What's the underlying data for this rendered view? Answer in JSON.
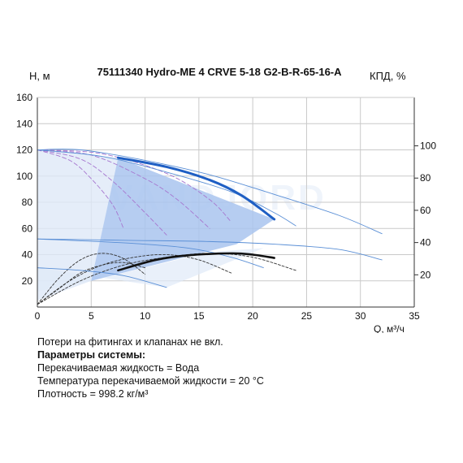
{
  "chart_data": {
    "type": "line",
    "title": "75111340 Hydro-ME 4 CRVE 5-18 G2-B-R-65-16-A",
    "ylabel": "H, м",
    "y2label": "КПД, %",
    "xlabel": "Q, м³/ч",
    "xlim": [
      0,
      35
    ],
    "ylim": [
      0,
      160
    ],
    "x_ticks": [
      "0",
      "5",
      "10",
      "15",
      "20",
      "25",
      "30",
      "35"
    ],
    "y_ticks": [
      "0",
      "20",
      "40",
      "60",
      "80",
      "100",
      "120",
      "140",
      "160"
    ],
    "y2lim": [
      0,
      130
    ],
    "y2_ticks": [
      "20",
      "40",
      "60",
      "80",
      "100"
    ],
    "grid": true,
    "watermark": "VANDJORD",
    "colors": {
      "duty_fill": "#a9c4ee",
      "light_fill": "#dfe9f8",
      "head_max": "#1f5fc4",
      "head_thin": "#5a8fd6",
      "power_curves": "#a676cf",
      "efficiency_curves": "#333333",
      "efficiency_main": "#111111",
      "grid": "#c9c9c9"
    },
    "duty_region": [
      [
        7.5,
        114
      ],
      [
        22,
        67
      ],
      [
        18.5,
        48
      ],
      [
        5,
        20
      ]
    ],
    "light_region": [
      [
        0,
        120
      ],
      [
        7.5,
        114
      ],
      [
        5,
        20
      ],
      [
        0,
        5
      ]
    ],
    "lower_light_region": [
      [
        0,
        30
      ],
      [
        12,
        15
      ],
      [
        18,
        35
      ],
      [
        21,
        45
      ],
      [
        16,
        42
      ],
      [
        5,
        20
      ],
      [
        0,
        12
      ]
    ],
    "series": [
      {
        "role": "head-max",
        "points": [
          [
            7.5,
            114
          ],
          [
            12,
            107
          ],
          [
            16,
            97
          ],
          [
            19,
            85
          ],
          [
            22,
            67
          ]
        ]
      },
      {
        "role": "head-thin",
        "points": [
          [
            0,
            120
          ],
          [
            4,
            120
          ],
          [
            10,
            112
          ],
          [
            16,
            101
          ],
          [
            22,
            86
          ],
          [
            28,
            70
          ],
          [
            32,
            56
          ]
        ]
      },
      {
        "role": "head-thin",
        "points": [
          [
            0,
            120
          ],
          [
            6,
            115
          ],
          [
            12,
            103
          ],
          [
            18,
            88
          ],
          [
            22,
            72
          ],
          [
            24,
            62
          ]
        ]
      },
      {
        "role": "head-thin",
        "points": [
          [
            0,
            52
          ],
          [
            8,
            51
          ],
          [
            16,
            50
          ],
          [
            22,
            48
          ],
          [
            28,
            44
          ],
          [
            32,
            36
          ]
        ]
      },
      {
        "role": "head-thin",
        "points": [
          [
            0,
            52
          ],
          [
            8,
            49
          ],
          [
            14,
            45
          ],
          [
            18,
            38
          ],
          [
            21,
            30
          ]
        ]
      },
      {
        "role": "head-thin",
        "points": [
          [
            0,
            30
          ],
          [
            4,
            28
          ],
          [
            8,
            24
          ],
          [
            12,
            15
          ]
        ]
      },
      {
        "role": "power",
        "points": [
          [
            0,
            120
          ],
          [
            4,
            113
          ],
          [
            7,
            96
          ],
          [
            10,
            72
          ],
          [
            12,
            55
          ]
        ]
      },
      {
        "role": "power",
        "points": [
          [
            0,
            120
          ],
          [
            5,
            116
          ],
          [
            10,
            98
          ],
          [
            13,
            82
          ],
          [
            16,
            60
          ]
        ]
      },
      {
        "role": "power",
        "points": [
          [
            0,
            120
          ],
          [
            6,
            117
          ],
          [
            12,
            102
          ],
          [
            16,
            82
          ],
          [
            18,
            65
          ]
        ]
      },
      {
        "role": "power",
        "points": [
          [
            0,
            120
          ],
          [
            3,
            112
          ],
          [
            5,
            98
          ],
          [
            7,
            78
          ],
          [
            8,
            60
          ]
        ]
      },
      {
        "role": "efficiency-main",
        "points": [
          [
            7.5,
            28
          ],
          [
            11,
            36
          ],
          [
            14,
            39.5
          ],
          [
            18,
            41
          ],
          [
            20,
            40
          ],
          [
            22,
            37.5
          ]
        ]
      },
      {
        "role": "efficiency",
        "points": [
          [
            0,
            2
          ],
          [
            2,
            22
          ],
          [
            4,
            36
          ],
          [
            6,
            41
          ],
          [
            8,
            37
          ],
          [
            10,
            25
          ]
        ]
      },
      {
        "role": "efficiency",
        "points": [
          [
            0,
            2
          ],
          [
            3,
            20
          ],
          [
            6,
            32
          ],
          [
            9,
            38
          ],
          [
            12,
            40
          ],
          [
            15,
            36
          ],
          [
            18,
            26
          ]
        ]
      },
      {
        "role": "efficiency",
        "points": [
          [
            0,
            2
          ],
          [
            4,
            20
          ],
          [
            8,
            32
          ],
          [
            12,
            38
          ],
          [
            16,
            41
          ],
          [
            20,
            38
          ],
          [
            24,
            28
          ]
        ]
      },
      {
        "role": "efficiency",
        "points": [
          [
            0,
            2
          ],
          [
            2,
            14
          ],
          [
            4,
            26
          ],
          [
            6,
            32
          ],
          [
            8,
            34
          ],
          [
            10,
            30
          ]
        ]
      }
    ]
  },
  "notes": {
    "line1": "Потери на фитингах и клапанах не вкл.",
    "line2": "Параметры системы:",
    "line3": "Перекачиваемая жидкость = Вода",
    "line4": "Температура перекачиваемой жидкости = 20 °C",
    "line5": "Плотность = 998.2 кг/м³"
  }
}
